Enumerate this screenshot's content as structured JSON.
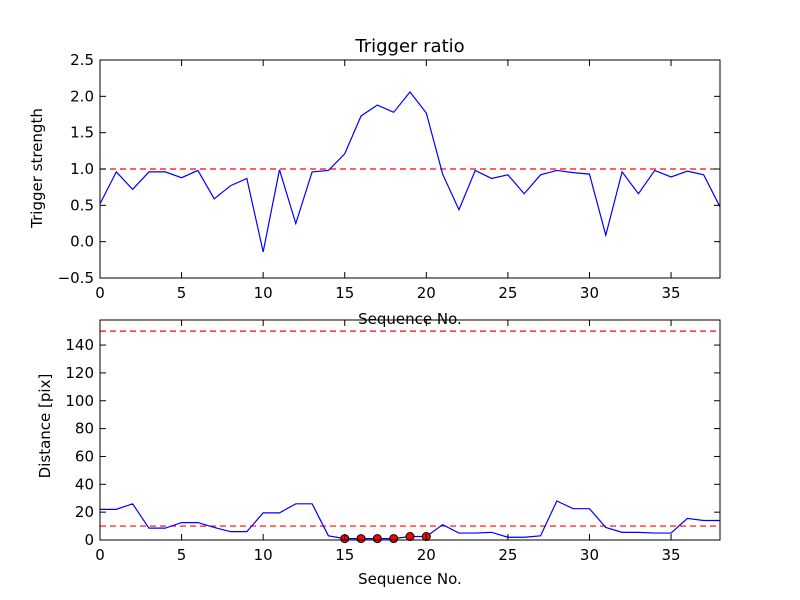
{
  "chart_data": [
    {
      "type": "line",
      "title": "Trigger ratio",
      "xlabel": "Sequence No.",
      "ylabel": "Trigger strength",
      "xlim": [
        0,
        38
      ],
      "ylim": [
        -0.5,
        2.5
      ],
      "xticks": [
        0,
        5,
        10,
        15,
        20,
        25,
        30,
        35
      ],
      "yticks": [
        -0.5,
        0.0,
        0.5,
        1.0,
        1.5,
        2.0,
        2.5
      ],
      "grid": false,
      "line_color": "#0000ff",
      "threshold_color": "#ff0000",
      "thresholds": [
        1.0
      ],
      "x": [
        0,
        1,
        2,
        3,
        4,
        5,
        6,
        7,
        8,
        9,
        10,
        11,
        12,
        13,
        14,
        15,
        16,
        17,
        18,
        19,
        20,
        21,
        22,
        23,
        24,
        25,
        26,
        27,
        28,
        29,
        30,
        31,
        32,
        33,
        34,
        35,
        36,
        37,
        38
      ],
      "y": [
        0.52,
        0.96,
        0.72,
        0.96,
        0.96,
        0.88,
        0.98,
        0.59,
        0.77,
        0.87,
        -0.14,
        0.99,
        0.25,
        0.96,
        0.98,
        1.21,
        1.73,
        1.88,
        1.78,
        2.06,
        1.77,
        0.93,
        0.44,
        0.98,
        0.87,
        0.92,
        0.66,
        0.92,
        0.98,
        0.95,
        0.93,
        0.09,
        0.96,
        0.66,
        0.98,
        0.89,
        0.97,
        0.92,
        0.48
      ]
    },
    {
      "type": "line",
      "title": "",
      "xlabel": "Sequence No.",
      "ylabel": "Distance [pix]",
      "xlim": [
        0,
        38
      ],
      "ylim": [
        0,
        158
      ],
      "xticks": [
        0,
        5,
        10,
        15,
        20,
        25,
        30,
        35
      ],
      "yticks": [
        0,
        20,
        40,
        60,
        80,
        100,
        120,
        140
      ],
      "grid": false,
      "line_color": "#0000ff",
      "threshold_color": "#ff0000",
      "marker_color": "#ff0000",
      "thresholds": [
        10,
        150
      ],
      "x": [
        0,
        1,
        2,
        3,
        4,
        5,
        6,
        7,
        8,
        9,
        10,
        11,
        12,
        13,
        14,
        15,
        16,
        17,
        18,
        19,
        20,
        21,
        22,
        23,
        24,
        25,
        26,
        27,
        28,
        29,
        30,
        31,
        32,
        33,
        34,
        35,
        36,
        37,
        38
      ],
      "y": [
        22,
        22,
        26,
        8.5,
        8.5,
        12.5,
        12.5,
        9,
        6,
        6,
        19.5,
        19.5,
        26,
        26,
        3,
        1,
        1,
        1,
        1,
        2.5,
        2.5,
        11,
        5,
        5,
        5.5,
        2,
        2,
        3,
        28,
        22.5,
        22.5,
        9,
        5.5,
        5.5,
        5,
        5,
        15.5,
        14,
        14
      ],
      "markers": {
        "x": [
          15,
          16,
          17,
          18,
          19,
          20
        ],
        "y": [
          1,
          1,
          1,
          1,
          2.5,
          2.5
        ]
      }
    }
  ]
}
